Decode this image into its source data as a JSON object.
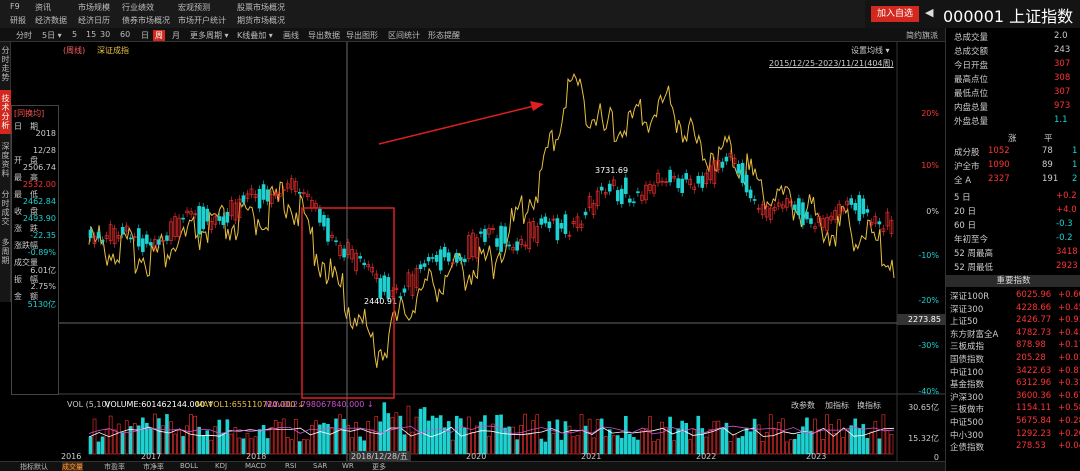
{
  "menu": {
    "row1": [
      "F9",
      "资讯",
      "市场规模",
      "行业绩效",
      "宏观预测",
      "股票市场概况"
    ],
    "row2": [
      "研报",
      "经济数据",
      "经济日历",
      "债券市场概况",
      "市场开户统计",
      "期货市场概况"
    ]
  },
  "header": {
    "add_button": "加入自选",
    "arrow": "◀",
    "stock_title": "000001 上证指数"
  },
  "toolbar": {
    "items": [
      "分时",
      "5日 ▾",
      "5",
      "15",
      "30",
      "60",
      "日",
      "周",
      "月",
      "更多周期 ▾",
      "K线叠加 ▾",
      "画线",
      "导出数据",
      "导出图形",
      "区间统计",
      "形态提醒"
    ],
    "selected": "周",
    "right": "简约旗派"
  },
  "vtabs": [
    {
      "label": "分时走势",
      "active": false
    },
    {
      "label": "技术分析",
      "active": true
    },
    {
      "label": "深度资料",
      "active": false
    },
    {
      "label": "分时成交",
      "active": false
    },
    {
      "label": "多周期",
      "active": false
    }
  ],
  "chart_top": {
    "legend_a": "(周线)",
    "legend_b": "深证成指",
    "settings": "设置均线 ▾",
    "range": "2015/12/25-2023/11/21(404周)"
  },
  "infopanel": {
    "title": "[同换均]",
    "rows": [
      {
        "label": "日　期",
        "value": "2018"
      },
      {
        "label": "",
        "value": "12/28"
      },
      {
        "label": "开　盘",
        "value": "2506.74"
      },
      {
        "label": "最　高",
        "value": "2532.00"
      },
      {
        "label": "最　低",
        "value": "2462.84"
      },
      {
        "label": "收　盘",
        "value": "2493.90"
      },
      {
        "label": "涨　跌",
        "value": "-22.35"
      },
      {
        "label": "涨跌幅",
        "value": "-0.89%"
      },
      {
        "label": "成交量",
        "value": "6.01亿"
      },
      {
        "label": "振　幅",
        "value": "2.75%"
      },
      {
        "label": "金　额",
        "value": "5130亿"
      }
    ]
  },
  "annotations": {
    "high": "3731.69",
    "low": "2440.91",
    "crosshair_price": "2273.85"
  },
  "pct_axis": [
    "20%",
    "10%",
    "0%",
    "-10%",
    "-20%",
    "-30%",
    "-40%"
  ],
  "volume": {
    "label": "VOL (5,10)",
    "volume_text": "VOLUME:601462144.000 ↑",
    "mavol1": "MAVOL1:655110720.000 ↓",
    "mavol2": "MAVOL2:798067840.000 ↓",
    "buttons": [
      "改参数",
      "加指标",
      "换指标"
    ],
    "axis": [
      "30.65亿",
      "15.32亿",
      "0"
    ]
  },
  "x_axis": {
    "labels": [
      "2016",
      "2017",
      "2018",
      "2018/12/28/五",
      "2020",
      "2021",
      "2022",
      "2023"
    ]
  },
  "bottom_tabs": {
    "items": [
      "指标默认",
      "成交量",
      "市盈率",
      "市净率",
      "BOLL",
      "KDJ",
      "MACD",
      "RSI",
      "SAR",
      "WR",
      "更多"
    ],
    "selected": "成交量"
  },
  "right_panel": {
    "stats": [
      {
        "label": "总成交量",
        "value": "2.0"
      },
      {
        "label": "总成交额",
        "value": "243"
      },
      {
        "label": "今日开盘",
        "value": "307"
      },
      {
        "label": "最高点位",
        "value": "308"
      },
      {
        "label": "最低点位",
        "value": "307"
      },
      {
        "label": "内盘总量",
        "value": "973"
      },
      {
        "label": "外盘总量",
        "value": "1.1"
      }
    ],
    "breadth_header": [
      "涨",
      "平"
    ],
    "breadth": [
      {
        "label": "成分股",
        "up": "1052",
        "flat": "78",
        "down": "1"
      },
      {
        "label": "沪全市",
        "up": "1090",
        "flat": "89",
        "down": "1"
      },
      {
        "label": "全 A",
        "up": "2327",
        "flat": "191",
        "down": "2"
      }
    ],
    "periods": [
      {
        "label": "5 日",
        "value": "+0.2"
      },
      {
        "label": "20 日",
        "value": "+4.0"
      },
      {
        "label": "60 日",
        "value": "-0.3"
      },
      {
        "label": "年初至今",
        "value": "-0.2"
      },
      {
        "label": "52 周最高",
        "value": "3418"
      },
      {
        "label": "52 周最低",
        "value": "2923"
      }
    ],
    "section_title": "重要指数",
    "indices": [
      {
        "name": "深证100R",
        "value": "6025.96",
        "chg": "+0.60"
      },
      {
        "name": "深证300",
        "value": "4228.66",
        "chg": "+0.45"
      },
      {
        "name": "上证50",
        "value": "2426.77",
        "chg": "+0.91"
      },
      {
        "name": "东方财富全A",
        "value": "4782.73",
        "chg": "+0.41"
      },
      {
        "name": "三板成指",
        "value": "878.98",
        "chg": "+0.17"
      },
      {
        "name": "国债指数",
        "value": "205.28",
        "chg": "+0.01"
      },
      {
        "name": "中证100",
        "value": "3422.63",
        "chg": "+0.81"
      },
      {
        "name": "基金指数",
        "value": "6312.96",
        "chg": "+0.31"
      },
      {
        "name": "沪深300",
        "value": "3600.36",
        "chg": "+0.67"
      },
      {
        "name": "三板做市",
        "value": "1154.11",
        "chg": "+0.58"
      },
      {
        "name": "中证500",
        "value": "5675.84",
        "chg": "+0.28"
      },
      {
        "name": "中小300",
        "value": "1292.23",
        "chg": "+0.20"
      },
      {
        "name": "企债指数",
        "value": "278.53",
        "chg": "+0.04"
      }
    ]
  },
  "colors": {
    "up": "#ff3333",
    "down": "#1ed2d2",
    "overlay": "#e8c040",
    "mavol1": "#ffffff",
    "mavol2": "#d050d0",
    "box": "#e02020"
  }
}
